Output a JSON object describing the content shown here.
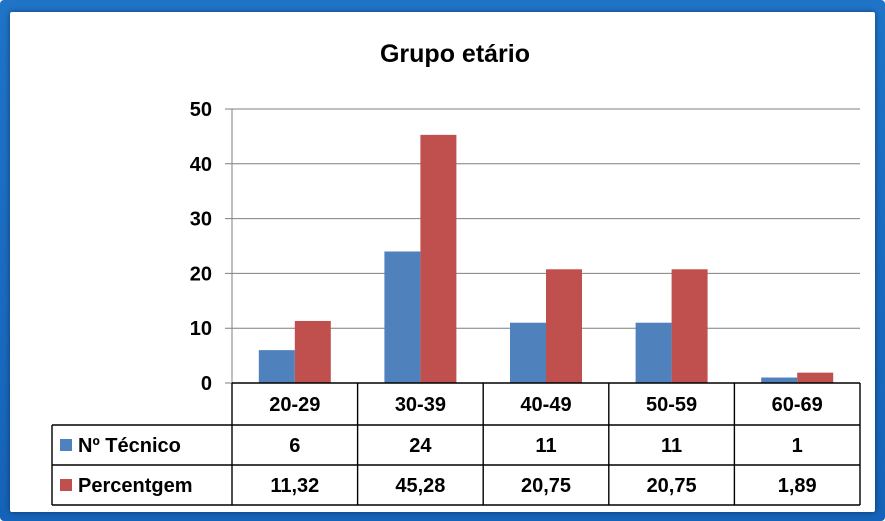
{
  "colors": {
    "series_1": "#4f81bd",
    "series_2": "#c0504d",
    "frame": "#1a6ac0"
  },
  "chart_data": {
    "type": "bar",
    "title": "Grupo etário",
    "categories": [
      "20-29",
      "30-39",
      "40-49",
      "50-59",
      "60-69"
    ],
    "series": [
      {
        "name": "Nº Técnico",
        "values": [
          6,
          24,
          11,
          11,
          1
        ],
        "labels": [
          "6",
          "24",
          "11",
          "11",
          "1"
        ],
        "color": "#4f81bd"
      },
      {
        "name": "Percentgem",
        "values": [
          11.32,
          45.28,
          20.75,
          20.75,
          1.89
        ],
        "labels": [
          "11,32",
          "45,28",
          "20,75",
          "20,75",
          "1,89"
        ],
        "color": "#c0504d"
      }
    ],
    "ylim": [
      0,
      50
    ],
    "yticks": [
      0,
      10,
      20,
      30,
      40,
      50
    ],
    "grid": true,
    "legend": "data-table",
    "xlabel": "",
    "ylabel": ""
  }
}
